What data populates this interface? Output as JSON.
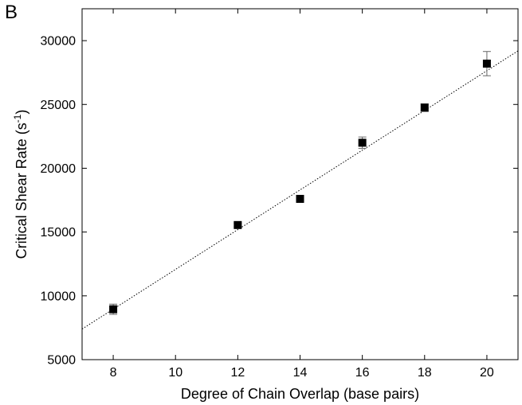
{
  "panel_label": "B",
  "chart_data": {
    "type": "scatter",
    "title": "",
    "xlabel": "Degree of Chain Overlap (base pairs)",
    "ylabel_main": "Critical Shear Rate (s",
    "ylabel_sup": "-1",
    "ylabel_close": ")",
    "xlim": [
      7,
      21
    ],
    "ylim": [
      5000,
      32500
    ],
    "xticks": [
      8,
      10,
      12,
      14,
      16,
      18,
      20
    ],
    "yticks": [
      5000,
      10000,
      15000,
      20000,
      25000,
      30000
    ],
    "grid": false,
    "legend": "none",
    "series": [
      {
        "marker": "square",
        "x": [
          8,
          12,
          14,
          16,
          18,
          20
        ],
        "y": [
          8950,
          15550,
          17600,
          22000,
          24750,
          28200
        ],
        "yerr": [
          400,
          150,
          150,
          450,
          300,
          950
        ]
      }
    ],
    "fit_line": {
      "style": "dotted",
      "x": [
        7,
        21
      ],
      "y": [
        7400,
        29200
      ]
    }
  }
}
